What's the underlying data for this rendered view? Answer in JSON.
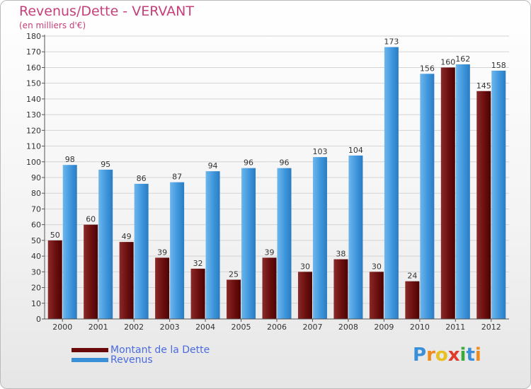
{
  "header": {
    "title": "Revenus/Dette - VERVANT",
    "subtitle": "(en milliers d'€)"
  },
  "legend": {
    "items": [
      {
        "label": "Montant de la Dette",
        "color": "#6b0a0a"
      },
      {
        "label": "Revenus",
        "color": "#3a8fd9"
      }
    ]
  },
  "logo": {
    "text": "Proxiti",
    "letters": [
      {
        "ch": "P",
        "color": "#3a8fd9"
      },
      {
        "ch": "r",
        "color": "#f08a1c"
      },
      {
        "ch": "o",
        "color": "#e8c020"
      },
      {
        "ch": "x",
        "color": "#e03a2a"
      },
      {
        "ch": "i",
        "color": "#3aaa3a"
      },
      {
        "ch": "t",
        "color": "#3a8fd9"
      },
      {
        "ch": "i",
        "color": "#f08a1c"
      }
    ]
  },
  "chart_data": {
    "type": "bar",
    "title": "Revenus/Dette - VERVANT",
    "subtitle": "(en milliers d'€)",
    "categories": [
      "2000",
      "2001",
      "2002",
      "2003",
      "2004",
      "2005",
      "2006",
      "2007",
      "2008",
      "2009",
      "2010",
      "2011",
      "2012"
    ],
    "series": [
      {
        "name": "Montant de la Dette",
        "color": "#6b0a0a",
        "values": [
          50,
          60,
          49,
          39,
          32,
          25,
          39,
          30,
          38,
          30,
          24,
          160,
          145
        ]
      },
      {
        "name": "Revenus",
        "color": "#3a8fd9",
        "values": [
          98,
          95,
          86,
          87,
          94,
          96,
          96,
          103,
          104,
          173,
          156,
          162,
          158
        ]
      }
    ],
    "ylim": [
      0,
      180
    ],
    "yticks": [
      0,
      10,
      20,
      30,
      40,
      50,
      60,
      70,
      80,
      90,
      100,
      110,
      120,
      130,
      140,
      150,
      160,
      170,
      180
    ],
    "grid": true,
    "legend_position": "bottom-left"
  }
}
